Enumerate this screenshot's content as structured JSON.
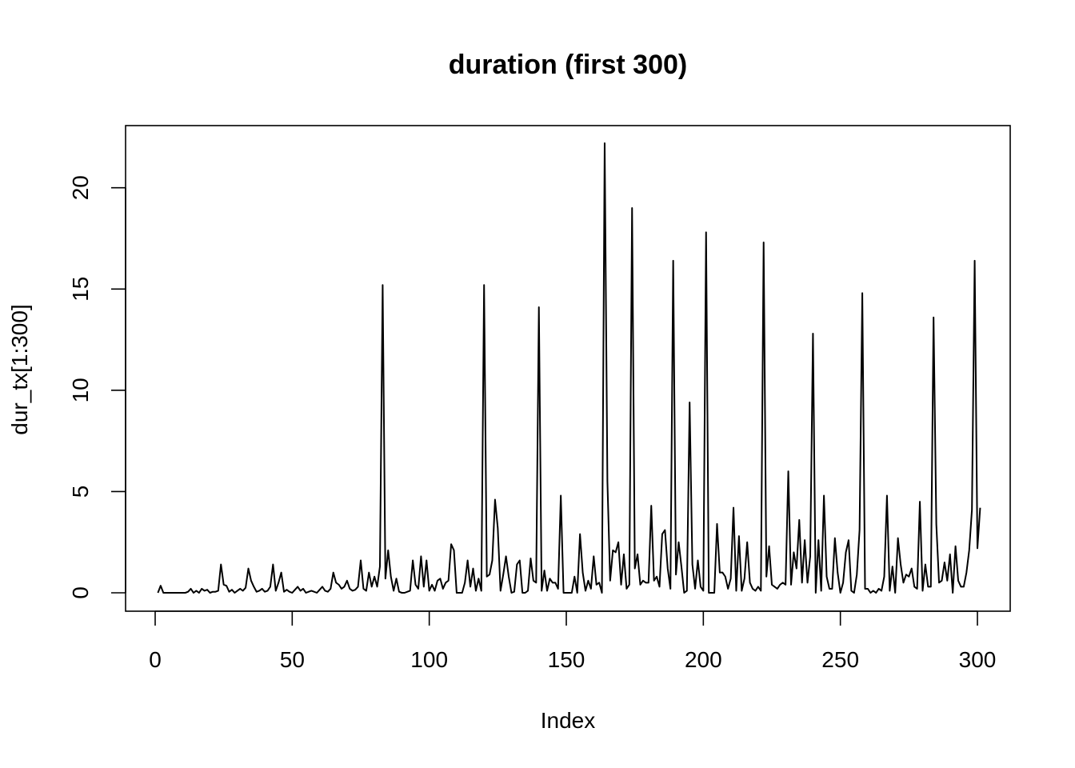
{
  "chart_data": {
    "type": "line",
    "title": "duration (first 300)",
    "xlabel": "Index",
    "ylabel": "dur_tx[1:300]",
    "xlim": [
      0,
      300
    ],
    "ylim": [
      0,
      22.2
    ],
    "x_ticks": [
      0,
      50,
      100,
      150,
      200,
      250,
      300
    ],
    "y_ticks": [
      0,
      5,
      10,
      15,
      20
    ],
    "grid": false,
    "line_color": "#000000",
    "series": [
      {
        "x_start": 1,
        "values": [
          0,
          0.35,
          0,
          0,
          0,
          0,
          0,
          0,
          0,
          0,
          0,
          0.05,
          0.2,
          0,
          0.1,
          0,
          0.2,
          0.1,
          0.15,
          0,
          0.05,
          0.05,
          0.1,
          1.4,
          0.4,
          0.35,
          0.05,
          0.15,
          0,
          0.1,
          0.2,
          0.1,
          0.25,
          1.2,
          0.6,
          0.3,
          0.05,
          0.1,
          0.2,
          0.05,
          0.1,
          0.3,
          1.4,
          0.1,
          0.5,
          1.0,
          0.05,
          0.15,
          0.05,
          0,
          0.15,
          0.3,
          0.1,
          0.2,
          0,
          0.05,
          0.1,
          0.05,
          0,
          0.15,
          0.3,
          0.1,
          0.05,
          0.2,
          1.0,
          0.5,
          0.4,
          0.2,
          0.3,
          0.6,
          0.2,
          0.1,
          0.15,
          0.3,
          1.6,
          0.2,
          0.1,
          1.0,
          0.3,
          0.8,
          0.3,
          1.3,
          15.2,
          0.7,
          2.1,
          0.8,
          0.1,
          0.7,
          0.05,
          0,
          0,
          0.05,
          0.1,
          1.6,
          0.4,
          0.2,
          1.8,
          0.3,
          1.6,
          0.1,
          0.4,
          0.1,
          0.6,
          0.7,
          0.2,
          0.5,
          0.6,
          2.4,
          2.1,
          0,
          0,
          0,
          0.5,
          1.6,
          0.3,
          1.2,
          0.1,
          0.7,
          0.1,
          15.2,
          0.8,
          0.9,
          1.6,
          4.6,
          3.2,
          0.1,
          0.9,
          1.8,
          0.8,
          0,
          0.05,
          1.4,
          1.6,
          0,
          0,
          0.1,
          1.7,
          0.6,
          0.5,
          14.1,
          0.1,
          1.1,
          0.1,
          0.7,
          0.5,
          0.5,
          0.2,
          4.8,
          0,
          0,
          0,
          0,
          0.8,
          0,
          2.9,
          1.0,
          0.1,
          0.6,
          0.2,
          1.8,
          0.4,
          0.5,
          0,
          22.2,
          5.5,
          0.6,
          2.1,
          2.0,
          2.5,
          0.4,
          1.9,
          0.2,
          0.4,
          19.0,
          1.2,
          1.9,
          0.4,
          0.6,
          0.5,
          0.5,
          4.3,
          0.6,
          0.8,
          0.3,
          2.9,
          3.1,
          1.2,
          0.2,
          16.4,
          0.9,
          2.5,
          1.3,
          0,
          0.1,
          9.4,
          1.4,
          0.2,
          1.6,
          0.3,
          0.1,
          17.8,
          0,
          0,
          0,
          3.4,
          1.0,
          1.0,
          0.8,
          0.2,
          0.7,
          4.2,
          0.1,
          2.8,
          0.1,
          0.7,
          2.5,
          0.5,
          0.2,
          0.1,
          0.3,
          0.1,
          17.3,
          0.8,
          2.3,
          0.4,
          0.3,
          0.2,
          0.4,
          0.5,
          0.4,
          6.0,
          0.4,
          2.0,
          1.2,
          3.6,
          0.5,
          2.6,
          0.5,
          1.8,
          12.8,
          0,
          2.6,
          0.1,
          4.8,
          0.8,
          0.2,
          0.2,
          2.7,
          1.0,
          0,
          0.5,
          2.0,
          2.6,
          0.1,
          0,
          0.9,
          3.1,
          14.8,
          0.2,
          0.2,
          0,
          0.1,
          0,
          0.2,
          0.1,
          0.8,
          4.8,
          0.1,
          1.3,
          0,
          2.7,
          1.4,
          0.5,
          0.9,
          0.8,
          1.2,
          0.3,
          0.2,
          4.5,
          0.1,
          1.4,
          0.3,
          0.3,
          13.6,
          3.4,
          0.5,
          0.6,
          1.5,
          0.6,
          1.9,
          0,
          2.3,
          0.6,
          0.3,
          0.3,
          1.0,
          2.1,
          4.1,
          16.4,
          2.2,
          4.2
        ]
      }
    ]
  }
}
